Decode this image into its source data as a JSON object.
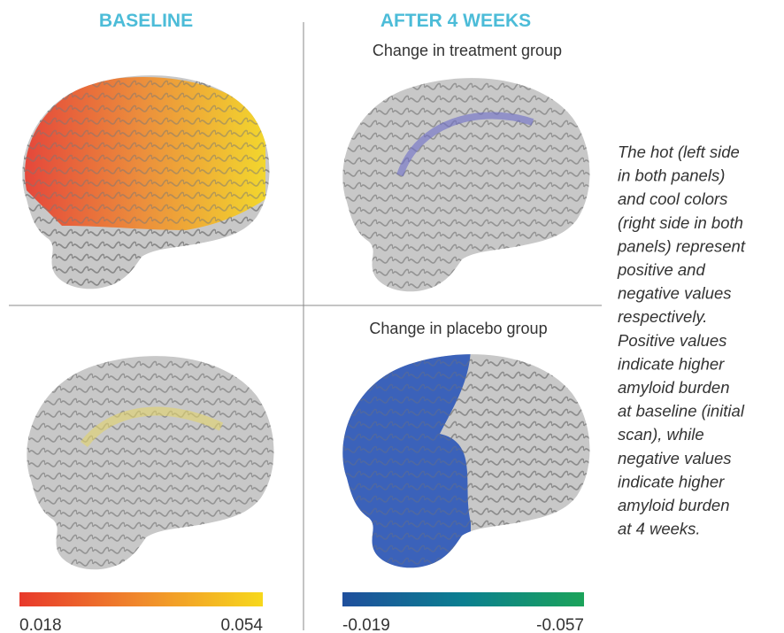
{
  "header": {
    "left": "BASELINE",
    "right": "AFTER 4 WEEKS"
  },
  "panels": {
    "top_right": "Change in treatment group",
    "bottom_right": "Change in placebo group"
  },
  "caption": [
    "The hot (left side",
    "in both panels)",
    "and cool colors",
    "(right side in both",
    "panels) represent",
    "positive and",
    "negative values",
    "respectively.",
    "Positive values",
    "indicate higher",
    "amyloid burden",
    "at baseline (initial",
    "scan), while",
    "negative values",
    "indicate higher",
    "amyloid burden",
    "at 4 weeks."
  ],
  "colorbars": {
    "left": {
      "min": "0.018",
      "max": "0.054"
    },
    "right": {
      "min": "-0.019",
      "max": "-0.057"
    }
  }
}
